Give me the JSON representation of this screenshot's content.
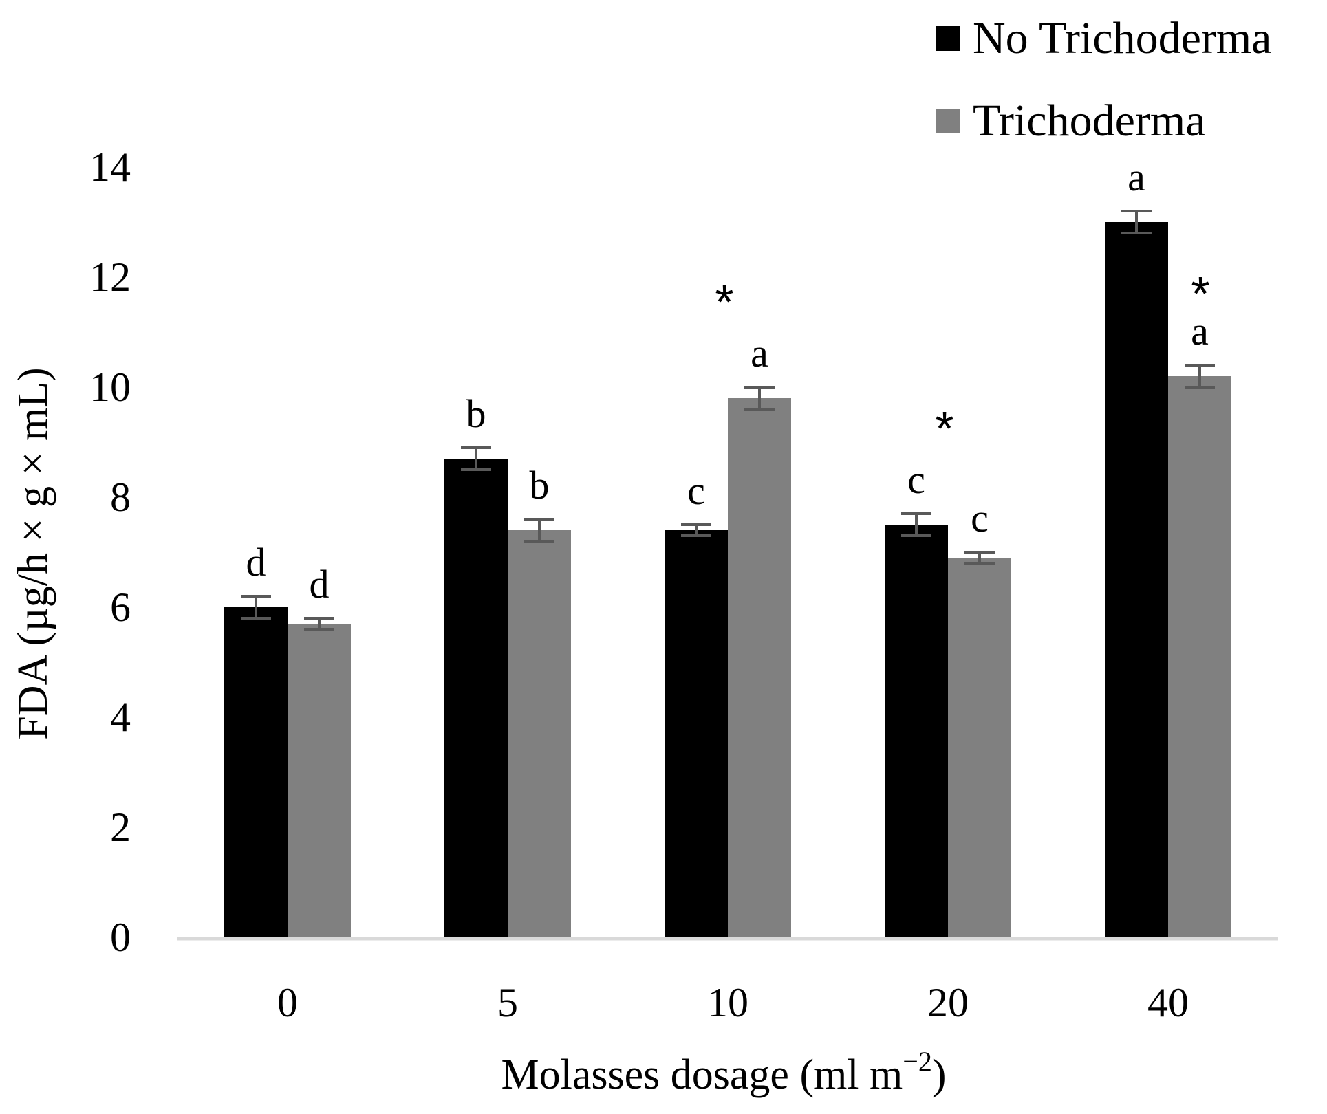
{
  "chart_data": {
    "type": "bar",
    "title": "",
    "xlabel": "Molasses dosage (ml m",
    "xlabel_sup": "−2",
    "xlabel_end": ")",
    "ylabel": "FDA (µg/h × g × mL)",
    "categories": [
      "0",
      "5",
      "10",
      "20",
      "40"
    ],
    "y_ticks": [
      "0",
      "2",
      "4",
      "6",
      "8",
      "10",
      "12",
      "14"
    ],
    "ylim": [
      0,
      14
    ],
    "grid": false,
    "legend_position": "top-right",
    "series": [
      {
        "name": "No Trichoderma",
        "color": "#000000",
        "values": [
          6.0,
          8.7,
          7.4,
          7.5,
          13.0
        ],
        "errors": [
          0.2,
          0.2,
          0.1,
          0.2,
          0.2
        ],
        "letters": [
          "d",
          "b",
          "c",
          "c",
          "a"
        ]
      },
      {
        "name": "Trichoderma",
        "color": "#808080",
        "values": [
          5.7,
          7.4,
          9.8,
          6.9,
          10.2
        ],
        "errors": [
          0.1,
          0.2,
          0.2,
          0.1,
          0.2
        ],
        "letters": [
          "d",
          "b",
          "a",
          "c",
          "a"
        ]
      }
    ],
    "significance": [
      "",
      "",
      "*",
      "*",
      "*"
    ],
    "axis_color": "#d9d9d9",
    "error_bar_color": "#595959"
  }
}
